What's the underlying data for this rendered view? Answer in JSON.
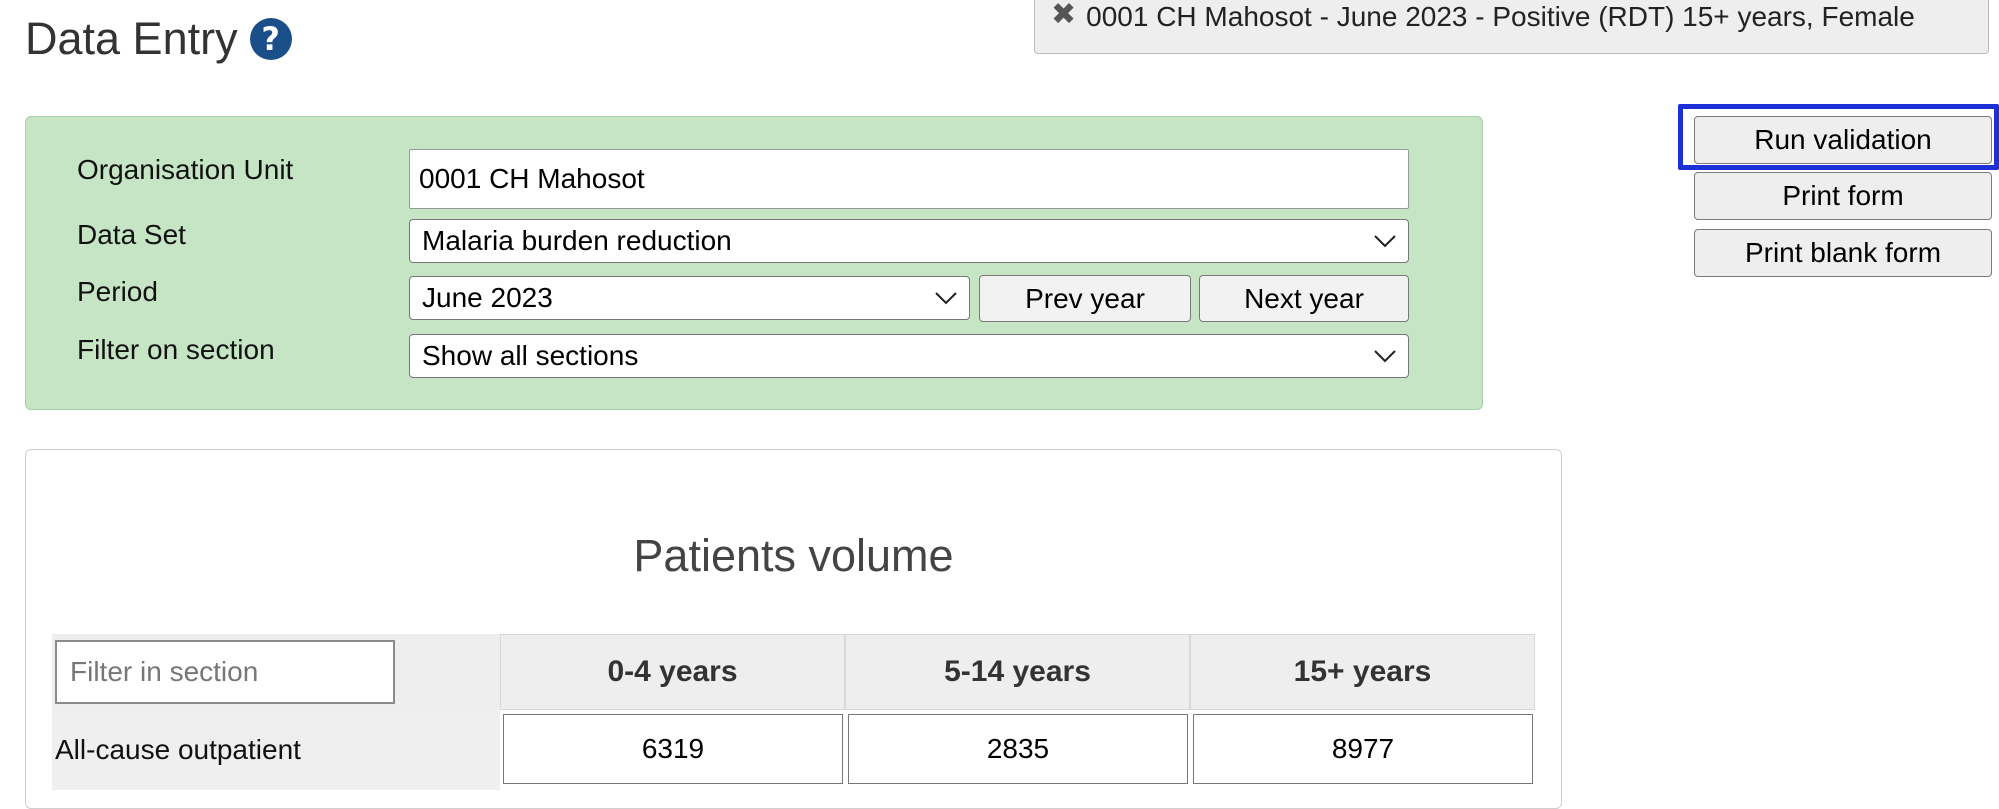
{
  "header": {
    "title": "Data Entry",
    "help_icon": "?"
  },
  "notification": {
    "close_icon": "✖",
    "text": "0001 CH Mahosot - June 2023 - Positive (RDT) 15+ years, Female"
  },
  "criteria": {
    "org_unit_label": "Organisation Unit",
    "org_unit_value": "0001 CH Mahosot",
    "dataset_label": "Data Set",
    "dataset_value": "Malaria burden reduction",
    "period_label": "Period",
    "period_value": "June 2023",
    "prev_year_label": "Prev year",
    "next_year_label": "Next year",
    "filter_section_label": "Filter on section",
    "filter_section_value": "Show all sections"
  },
  "actions": {
    "run_validation": "Run validation",
    "print_form": "Print form",
    "print_blank_form": "Print blank form"
  },
  "section": {
    "title": "Patients volume",
    "filter_placeholder": "Filter in section",
    "columns": [
      "0-4 years",
      "5-14 years",
      "15+ years"
    ],
    "rows": [
      {
        "label": "All-cause outpatient",
        "values": [
          "6319",
          "2835",
          "8977"
        ]
      }
    ]
  },
  "colors": {
    "criteria_bg": "#c6e5c4",
    "focus_ring": "#1d2fd6",
    "help_icon": "#1b4f8a"
  }
}
